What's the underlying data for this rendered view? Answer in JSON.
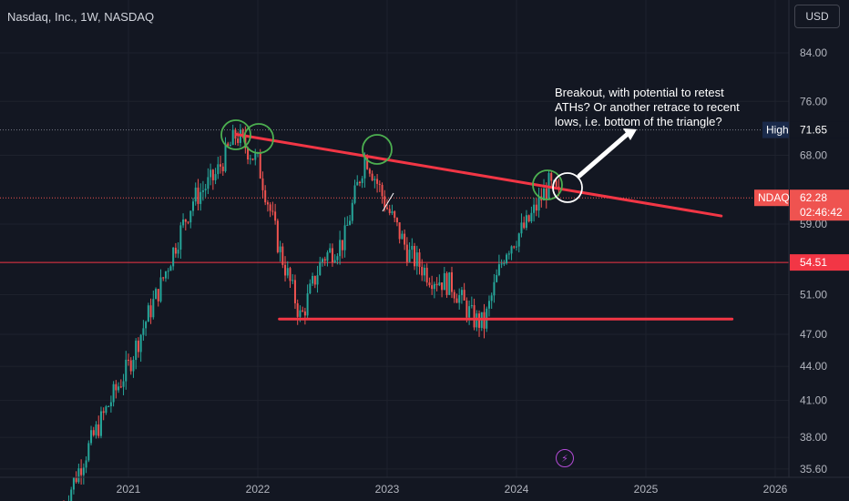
{
  "header": {
    "symbol_title": "Nasdaq, Inc., 1W, NASDAQ"
  },
  "currency_button": {
    "label": "USD"
  },
  "annotation": {
    "text": "Breakout, with potential to retest ATHs? Or another retrace to recent lows, i.e. bottom of the triangle?"
  },
  "bolt_icon": {
    "name": "lightning-icon",
    "glyph": "⚡"
  },
  "colors": {
    "background": "#131722",
    "up_candle": "#26a69a",
    "down_candle": "#ef5350",
    "trendline": "#f23645",
    "circle": "#4caf50",
    "axis_text": "#b2b5be"
  },
  "chart_data": {
    "type": "candlestick",
    "title": "Nasdaq, Inc., 1W, NASDAQ",
    "x_ticks": [
      "2021",
      "2022",
      "2023",
      "2024",
      "2025",
      "2026"
    ],
    "y_ticks": [
      "84.00",
      "76.00",
      "68.00",
      "59.00",
      "51.00",
      "47.00",
      "44.00",
      "41.00",
      "38.00",
      "35.60"
    ],
    "y_scale": "log",
    "price_labels": {
      "high": {
        "label": "High",
        "value": "71.65"
      },
      "current": {
        "label": "NDAQ",
        "value": "62.28",
        "countdown": "02:46:42"
      },
      "level": {
        "value": "54.51"
      }
    },
    "horizontal_lines": [
      54.51,
      71.65,
      62.28
    ],
    "lines": [
      {
        "name": "descending resistance",
        "from": [
          "2021-11",
          71.0
        ],
        "to": [
          "2025-08",
          60.0
        ]
      },
      {
        "name": "support",
        "from": [
          "2022-03",
          48.5
        ],
        "to": [
          "2025-09",
          48.5
        ]
      }
    ],
    "price_path": [
      [
        "2020-07",
        33.0
      ],
      [
        "2020-10",
        38.5
      ],
      [
        "2021-01",
        44.0
      ],
      [
        "2021-04",
        52.0
      ],
      [
        "2021-07",
        62.0
      ],
      [
        "2021-09",
        65.0
      ],
      [
        "2021-11",
        71.0
      ],
      [
        "2022-01",
        67.0
      ],
      [
        "2022-03",
        56.0
      ],
      [
        "2022-05",
        48.5
      ],
      [
        "2022-07",
        55.0
      ],
      [
        "2022-09",
        57.0
      ],
      [
        "2022-11",
        68.0
      ],
      [
        "2023-01",
        61.0
      ],
      [
        "2023-03",
        55.5
      ],
      [
        "2023-05",
        53.0
      ],
      [
        "2023-07",
        52.0
      ],
      [
        "2023-09",
        48.5
      ],
      [
        "2023-10",
        48.0
      ],
      [
        "2023-12",
        56.0
      ],
      [
        "2024-02",
        59.0
      ],
      [
        "2024-04",
        64.0
      ],
      [
        "2024-05",
        62.28
      ]
    ]
  }
}
